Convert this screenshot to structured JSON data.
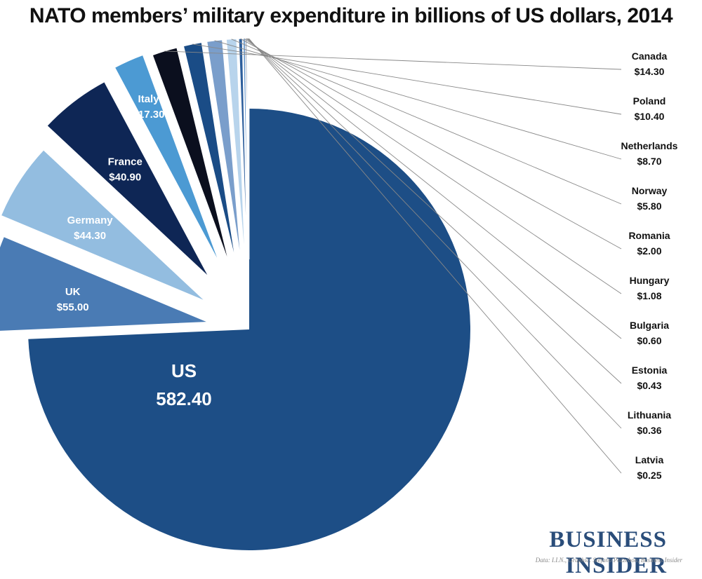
{
  "chart_data": {
    "type": "pie",
    "title": "NATO members’ military expenditure in billions of US dollars, 2014",
    "slices": [
      {
        "name": "US",
        "value": 582.4,
        "label_value": "582.40",
        "color": "#1d4e86"
      },
      {
        "name": "UK",
        "value": 55.0,
        "label_value": "$55.00",
        "color": "#4a7bb4"
      },
      {
        "name": "Germany",
        "value": 44.3,
        "label_value": "$44.30",
        "color": "#93bde0"
      },
      {
        "name": "France",
        "value": 40.9,
        "label_value": "$40.90",
        "color": "#0e2655"
      },
      {
        "name": "Italy",
        "value": 17.3,
        "label_value": "$17.30",
        "color": "#4c9ad3"
      },
      {
        "name": "Canada",
        "value": 14.3,
        "label_value": "$14.30",
        "color": "#0b0f1e"
      },
      {
        "name": "Poland",
        "value": 10.4,
        "label_value": "$10.40",
        "color": "#1a4c86"
      },
      {
        "name": "Netherlands",
        "value": 8.7,
        "label_value": "$8.70",
        "color": "#7a9ecb"
      },
      {
        "name": "Norway",
        "value": 5.8,
        "label_value": "$5.80",
        "color": "#b8d4ec"
      },
      {
        "name": "Romania",
        "value": 2.0,
        "label_value": "$2.00",
        "color": "#2d5e9c"
      },
      {
        "name": "Hungary",
        "value": 1.08,
        "label_value": "$1.08",
        "color": "#5d8fc6"
      },
      {
        "name": "Bulgaria",
        "value": 0.6,
        "label_value": "$0.60",
        "color": "#0f2b5c"
      },
      {
        "name": "Estonia",
        "value": 0.43,
        "label_value": "$0.43",
        "color": "#9dc3e5"
      },
      {
        "name": "Lithuania",
        "value": 0.36,
        "label_value": "$0.36",
        "color": "#3b6ea8"
      },
      {
        "name": "Latvia",
        "value": 0.25,
        "label_value": "$0.25",
        "color": "#1a3f73"
      }
    ],
    "unit": "billions of US dollars",
    "year": "2014"
  },
  "branding": {
    "publisher": "BUSINESS INSIDER",
    "credit": "Data: I.I.N., Graphic: Stefano Pozzebon, Business Insider"
  }
}
